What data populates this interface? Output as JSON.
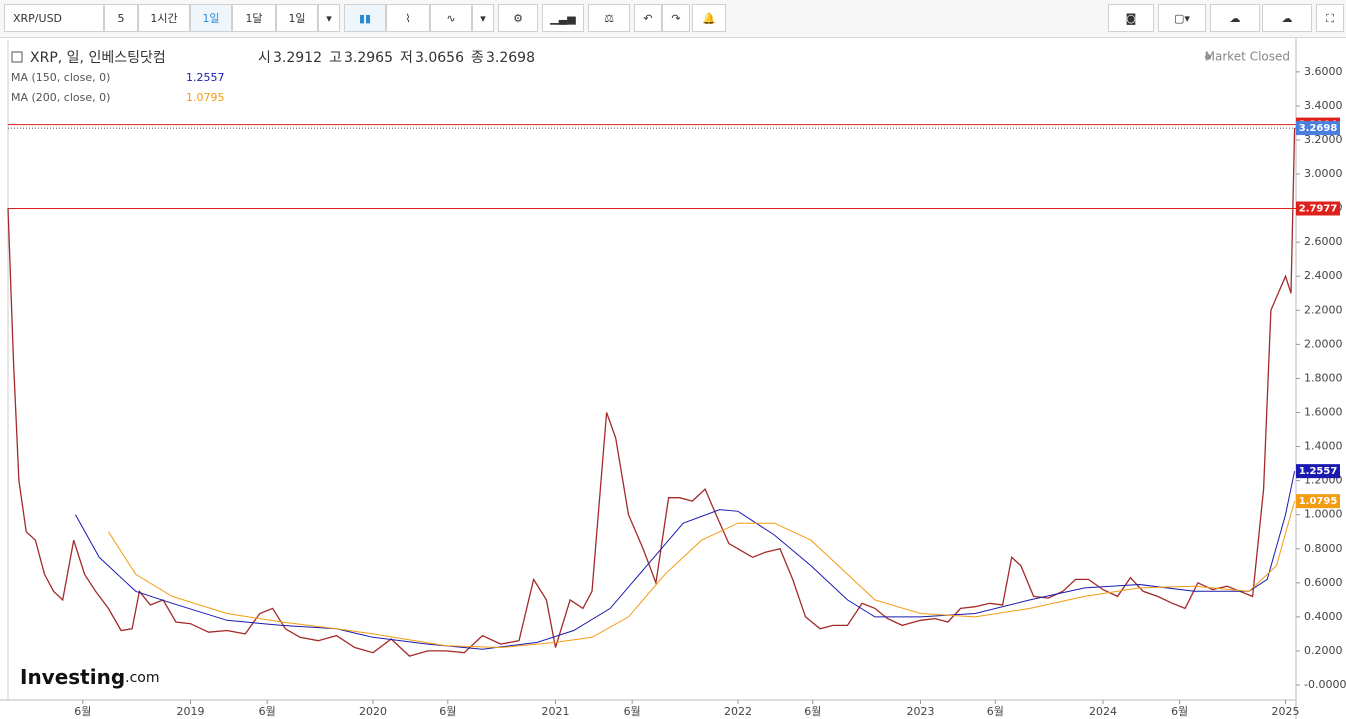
{
  "toolbar": {
    "symbol": "XRP/USD",
    "buttons": [
      "5",
      "1시간",
      "1일",
      "1달",
      "1일"
    ]
  },
  "chart_data": {
    "type": "line",
    "title": "XRP, 일, 인베스팅닷컴",
    "ohlc": [
      {
        "label": "시",
        "value": 3.2912
      },
      {
        "label": "고",
        "value": 3.2965
      },
      {
        "label": "저",
        "value": 3.0656
      },
      {
        "label": "종",
        "value": 3.2698
      }
    ],
    "status": "Market Closed",
    "logo": "Investing",
    "logo_suffix": ".com",
    "xlim": [
      2018.0,
      2025.05
    ],
    "xticks": [
      {
        "value": 2018.41,
        "label": "6월"
      },
      2019,
      {
        "value": 2019.42,
        "label": "6월"
      },
      2020,
      {
        "value": 2020.41,
        "label": "6월"
      },
      2021,
      {
        "value": 2021.42,
        "label": "6월"
      },
      2022,
      {
        "value": 2022.41,
        "label": "6월"
      },
      2023,
      {
        "value": 2023.41,
        "label": "6월"
      },
      2024,
      {
        "value": 2024.42,
        "label": "6월"
      },
      2025
    ],
    "ylim": [
      -0.088,
      3.787
    ],
    "yticks": [
      {
        "value": 0,
        "label": "-0.0000"
      },
      {
        "value": 0.2,
        "label": "0.2000"
      },
      {
        "value": 0.4,
        "label": "0.4000"
      },
      {
        "value": 0.6,
        "label": "0.6000"
      },
      {
        "value": 0.8,
        "label": "0.8000"
      },
      {
        "value": 1.0,
        "label": "1.0000"
      },
      {
        "value": 1.2,
        "label": "1.2000"
      },
      {
        "value": 1.4,
        "label": "1.4000"
      },
      {
        "value": 1.6,
        "label": "1.6000"
      },
      {
        "value": 1.8,
        "label": "1.8000"
      },
      {
        "value": 2.0,
        "label": "2.0000"
      },
      {
        "value": 2.2,
        "label": "2.2000"
      },
      {
        "value": 2.4,
        "label": "2.4000"
      },
      {
        "value": 2.6,
        "label": "2.6000"
      },
      {
        "value": 2.8,
        "label": "2.8000"
      },
      {
        "value": 3.0,
        "label": "3.0000"
      },
      {
        "value": 3.2,
        "label": "3.2000"
      },
      {
        "value": 3.4,
        "label": "3.4000"
      },
      {
        "value": 3.6,
        "label": "3.6000"
      }
    ],
    "price_lines": [
      {
        "value": 3.2904,
        "color": "#e0201a",
        "dash": false
      },
      {
        "value": 3.2698,
        "color": "#4a7fe0",
        "dash": true
      },
      {
        "value": 2.7977,
        "color": "#e0201a",
        "dash": false
      }
    ],
    "series": [
      {
        "color": "#a32a2a",
        "x": [
          2018.0,
          2018.03,
          2018.06,
          2018.1,
          2018.15,
          2018.2,
          2018.25,
          2018.3,
          2018.36,
          2018.42,
          2018.48,
          2018.55,
          2018.62,
          2018.68,
          2018.72,
          2018.78,
          2018.85,
          2018.92,
          2019.0,
          2019.1,
          2019.2,
          2019.3,
          2019.38,
          2019.45,
          2019.52,
          2019.6,
          2019.7,
          2019.8,
          2019.9,
          2020.0,
          2020.1,
          2020.2,
          2020.3,
          2020.4,
          2020.5,
          2020.6,
          2020.7,
          2020.8,
          2020.88,
          2020.95,
          2021.0,
          2021.08,
          2021.15,
          2021.2,
          2021.28,
          2021.33,
          2021.4,
          2021.48,
          2021.55,
          2021.62,
          2021.68,
          2021.75,
          2021.82,
          2021.88,
          2021.95,
          2022.0,
          2022.08,
          2022.15,
          2022.23,
          2022.3,
          2022.37,
          2022.45,
          2022.52,
          2022.6,
          2022.68,
          2022.75,
          2022.82,
          2022.9,
          2023.0,
          2023.08,
          2023.15,
          2023.22,
          2023.3,
          2023.38,
          2023.45,
          2023.5,
          2023.55,
          2023.62,
          2023.7,
          2023.78,
          2023.85,
          2023.92,
          2024.0,
          2024.08,
          2024.15,
          2024.22,
          2024.3,
          2024.38,
          2024.45,
          2024.52,
          2024.6,
          2024.68,
          2024.75,
          2024.82,
          2024.88,
          2024.92,
          2024.96,
          2025.0,
          2025.03,
          2025.05
        ],
        "values": [
          2.8,
          1.9,
          1.2,
          0.9,
          0.85,
          0.65,
          0.55,
          0.5,
          0.85,
          0.65,
          0.55,
          0.45,
          0.32,
          0.33,
          0.55,
          0.47,
          0.5,
          0.37,
          0.36,
          0.31,
          0.32,
          0.3,
          0.42,
          0.45,
          0.33,
          0.28,
          0.26,
          0.29,
          0.22,
          0.19,
          0.27,
          0.17,
          0.2,
          0.2,
          0.19,
          0.29,
          0.24,
          0.26,
          0.62,
          0.5,
          0.22,
          0.5,
          0.45,
          0.55,
          1.6,
          1.45,
          1.0,
          0.8,
          0.6,
          1.1,
          1.1,
          1.08,
          1.15,
          1.0,
          0.83,
          0.8,
          0.75,
          0.78,
          0.8,
          0.62,
          0.4,
          0.33,
          0.35,
          0.35,
          0.48,
          0.45,
          0.39,
          0.35,
          0.38,
          0.39,
          0.37,
          0.45,
          0.46,
          0.48,
          0.47,
          0.75,
          0.7,
          0.52,
          0.51,
          0.55,
          0.62,
          0.62,
          0.56,
          0.52,
          0.63,
          0.55,
          0.52,
          0.48,
          0.45,
          0.6,
          0.56,
          0.58,
          0.55,
          0.52,
          1.15,
          2.2,
          2.3,
          2.4,
          2.3,
          3.27
        ]
      },
      {
        "name": "MA (150, close, 0)",
        "color": "#1a1ab0",
        "last": 1.2557,
        "x": [
          2018.37,
          2018.5,
          2018.7,
          2018.9,
          2019.2,
          2019.5,
          2019.8,
          2020.0,
          2020.3,
          2020.6,
          2020.9,
          2021.1,
          2021.3,
          2021.5,
          2021.7,
          2021.9,
          2022.0,
          2022.2,
          2022.4,
          2022.6,
          2022.75,
          2023.0,
          2023.3,
          2023.6,
          2023.9,
          2024.2,
          2024.5,
          2024.8,
          2024.9,
          2025.0,
          2025.05
        ],
        "values": [
          1.0,
          0.75,
          0.55,
          0.48,
          0.38,
          0.35,
          0.33,
          0.28,
          0.24,
          0.21,
          0.25,
          0.32,
          0.45,
          0.7,
          0.95,
          1.03,
          1.02,
          0.88,
          0.7,
          0.5,
          0.4,
          0.4,
          0.42,
          0.5,
          0.57,
          0.59,
          0.55,
          0.55,
          0.62,
          1.0,
          1.2557
        ]
      },
      {
        "name": "MA (200, close, 0)",
        "color": "#f39c12",
        "last": 1.0795,
        "x": [
          2018.55,
          2018.7,
          2018.9,
          2019.2,
          2019.5,
          2019.8,
          2020.0,
          2020.4,
          2020.7,
          2021.0,
          2021.2,
          2021.4,
          2021.6,
          2021.8,
          2022.0,
          2022.2,
          2022.4,
          2022.6,
          2022.75,
          2023.0,
          2023.3,
          2023.6,
          2023.9,
          2024.2,
          2024.5,
          2024.8,
          2024.95,
          2025.05
        ],
        "values": [
          0.9,
          0.65,
          0.52,
          0.42,
          0.37,
          0.33,
          0.3,
          0.23,
          0.22,
          0.25,
          0.28,
          0.4,
          0.65,
          0.85,
          0.95,
          0.95,
          0.85,
          0.65,
          0.5,
          0.42,
          0.4,
          0.45,
          0.52,
          0.57,
          0.58,
          0.55,
          0.7,
          1.0795
        ]
      }
    ]
  }
}
